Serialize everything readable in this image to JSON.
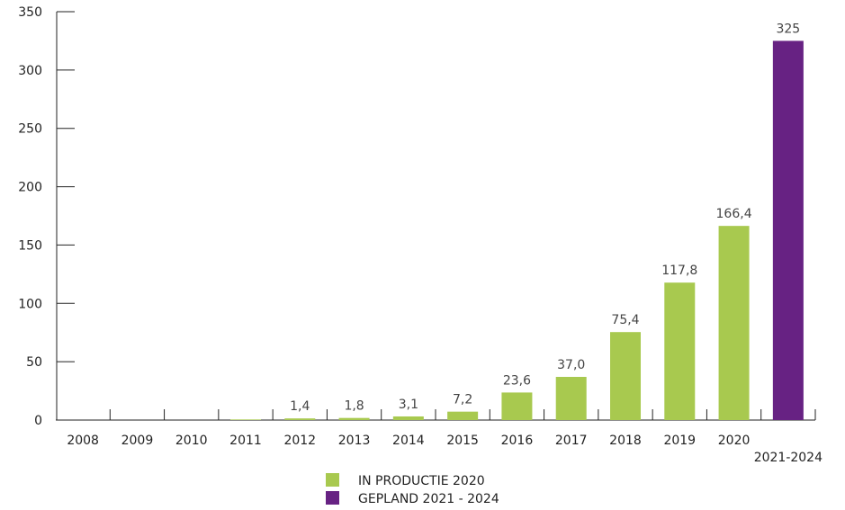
{
  "chart_data": {
    "type": "bar",
    "categories": [
      "2008",
      "2009",
      "2010",
      "2011",
      "2012",
      "2013",
      "2014",
      "2015",
      "2016",
      "2017",
      "2018",
      "2019",
      "2020",
      "2021-2024"
    ],
    "values": [
      0,
      0,
      0,
      0.5,
      1.4,
      1.8,
      3.1,
      7.2,
      23.6,
      37.0,
      75.4,
      117.8,
      166.4,
      325
    ],
    "value_labels": [
      "",
      "",
      "",
      "",
      "1,4",
      "1,8",
      "3,1",
      "7,2",
      "23,6",
      "37,0",
      "75,4",
      "117,8",
      "166,4",
      "325"
    ],
    "series_group": [
      "production",
      "production",
      "production",
      "production",
      "production",
      "production",
      "production",
      "production",
      "production",
      "production",
      "production",
      "production",
      "production",
      "planned"
    ],
    "ylim": [
      0,
      350
    ],
    "yticks": [
      0,
      50,
      100,
      150,
      200,
      250,
      300,
      350
    ],
    "title": "",
    "xlabel": "",
    "ylabel": "",
    "grid": false,
    "legend_position": "bottom-center",
    "legend": [
      {
        "key": "production",
        "label": "IN PRODUCTIE 2020",
        "color": "#a8c94f"
      },
      {
        "key": "planned",
        "label": "GEPLAND 2021 - 2024",
        "color": "#672283"
      }
    ]
  }
}
